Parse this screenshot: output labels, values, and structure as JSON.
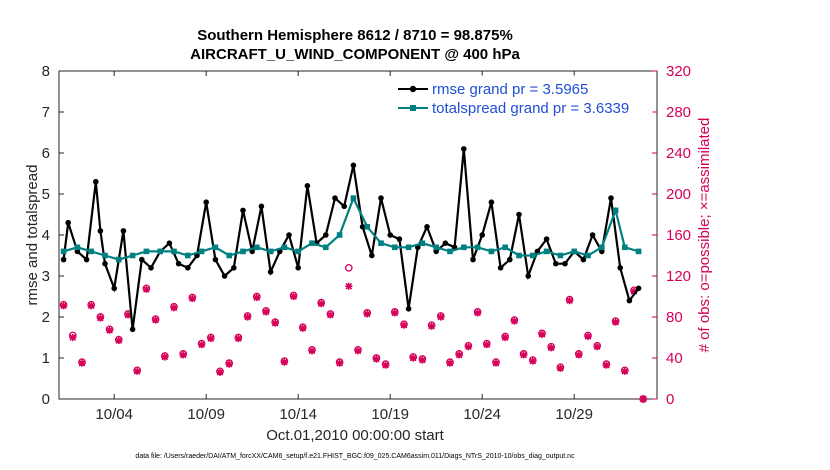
{
  "chart_data": {
    "type": "line",
    "title_line1": "Southern Hemisphere 8612 / 8710 = 98.875%",
    "title_line2": "AIRCRAFT_U_WIND_COMPONENT @ 400 hPa",
    "ylabel": "rmse and totalspread",
    "ylabel_right": "# of obs: o=possible; ×=assimilated",
    "xlabel": "Oct.01,2010 00:00:00 start",
    "footer": "data file: /Users/raeder/DAI/ATM_forcXX/CAM6_setup/f.e21.FHIST_BGC.f09_025.CAM6assim.011/Diags_NTrS_2010-10/obs_diag_output.nc",
    "xlim": [
      1,
      33.5
    ],
    "ylim": [
      0,
      8
    ],
    "ylim_right": [
      0,
      320
    ],
    "x_ticks": [
      4,
      9,
      14,
      19,
      24,
      29
    ],
    "x_tick_labels": [
      "10/04",
      "10/09",
      "10/14",
      "10/19",
      "10/24",
      "10/29"
    ],
    "y_ticks": [
      0,
      1,
      2,
      3,
      4,
      5,
      6,
      7,
      8
    ],
    "y_ticks_right": [
      0,
      40,
      80,
      120,
      160,
      200,
      240,
      280,
      320
    ],
    "legend_position": "top-right",
    "series": [
      {
        "name": "rmse grand pr = 3.5965",
        "color": "#000000",
        "x": [
          1.25,
          1.5,
          2.0,
          2.5,
          3.0,
          3.25,
          3.5,
          4.0,
          4.5,
          5.0,
          5.5,
          6.0,
          6.5,
          7.0,
          7.5,
          8.0,
          8.5,
          9.0,
          9.5,
          10.0,
          10.5,
          11.0,
          11.5,
          12.0,
          12.5,
          13.0,
          13.5,
          14.0,
          14.5,
          15.0,
          15.5,
          16.0,
          16.5,
          17.0,
          17.5,
          18.0,
          18.5,
          19.0,
          19.5,
          20.0,
          20.5,
          21.0,
          21.5,
          22.0,
          22.5,
          23.0,
          23.5,
          24.0,
          24.5,
          25.0,
          25.5,
          26.0,
          26.5,
          27.0,
          27.5,
          28.0,
          28.5,
          29.0,
          29.5,
          30.0,
          30.5,
          31.0,
          31.5,
          32.0,
          32.5
        ],
        "values": [
          3.4,
          4.3,
          3.6,
          3.4,
          5.3,
          4.1,
          3.3,
          2.7,
          4.1,
          1.7,
          3.4,
          3.2,
          3.6,
          3.8,
          3.3,
          3.2,
          3.5,
          4.8,
          3.4,
          3.0,
          3.2,
          4.6,
          3.6,
          4.7,
          3.1,
          3.6,
          4.0,
          3.2,
          5.2,
          3.8,
          4.0,
          4.9,
          4.7,
          5.7,
          4.2,
          3.5,
          4.9,
          4.0,
          3.9,
          2.2,
          3.7,
          4.2,
          3.6,
          3.8,
          3.7,
          6.1,
          3.4,
          4.0,
          4.8,
          3.2,
          3.4,
          4.5,
          3.0,
          3.6,
          3.9,
          3.3,
          3.3,
          3.6,
          3.4,
          4.0,
          3.6,
          4.9,
          3.2,
          2.4,
          2.7
        ]
      },
      {
        "name": "totalspread grand pr = 3.6339",
        "color": "#008080",
        "x": [
          1.25,
          2.0,
          2.75,
          3.5,
          4.25,
          5.0,
          5.75,
          6.5,
          7.25,
          8.0,
          8.75,
          9.5,
          10.25,
          11.0,
          11.75,
          12.5,
          13.25,
          14.0,
          14.75,
          15.5,
          16.25,
          17.0,
          17.75,
          18.5,
          19.25,
          20.0,
          20.75,
          21.5,
          22.25,
          23.0,
          23.75,
          24.5,
          25.25,
          26.0,
          26.75,
          27.5,
          28.25,
          29.0,
          29.75,
          30.5,
          31.25,
          31.75,
          32.5
        ],
        "values": [
          3.6,
          3.7,
          3.6,
          3.5,
          3.4,
          3.5,
          3.6,
          3.6,
          3.6,
          3.5,
          3.6,
          3.7,
          3.5,
          3.6,
          3.7,
          3.6,
          3.7,
          3.6,
          3.8,
          3.7,
          4.0,
          4.9,
          4.2,
          3.8,
          3.7,
          3.7,
          3.8,
          3.7,
          3.6,
          3.7,
          3.7,
          3.6,
          3.7,
          3.5,
          3.5,
          3.6,
          3.5,
          3.6,
          3.5,
          3.7,
          4.6,
          3.7,
          3.6
        ]
      }
    ],
    "obs_series": [
      {
        "name": "possible",
        "color": "#d6005a",
        "x": [
          1.25,
          1.75,
          2.25,
          2.75,
          3.25,
          3.75,
          4.25,
          4.75,
          5.25,
          5.75,
          6.25,
          6.75,
          7.25,
          7.75,
          8.25,
          8.75,
          9.25,
          9.75,
          10.25,
          10.75,
          11.25,
          11.75,
          12.25,
          12.75,
          13.25,
          13.75,
          14.25,
          14.75,
          15.25,
          15.75,
          16.25,
          16.75,
          17.25,
          17.75,
          18.25,
          18.75,
          19.25,
          19.75,
          20.25,
          20.75,
          21.25,
          21.75,
          22.25,
          22.75,
          23.25,
          23.75,
          24.25,
          24.75,
          25.25,
          25.75,
          26.25,
          26.75,
          27.25,
          27.75,
          28.25,
          28.75,
          29.25,
          29.75,
          30.25,
          30.75,
          31.25,
          31.75,
          32.25,
          32.75
        ],
        "values": [
          92,
          62,
          36,
          92,
          80,
          68,
          58,
          83,
          28,
          108,
          78,
          42,
          90,
          44,
          99,
          54,
          60,
          27,
          35,
          60,
          81,
          100,
          86,
          75,
          37,
          101,
          70,
          48,
          94,
          83,
          36,
          128,
          48,
          84,
          40,
          34,
          85,
          73,
          41,
          39,
          72,
          81,
          36,
          44,
          52,
          85,
          54,
          36,
          61,
          77,
          44,
          38,
          64,
          51,
          31,
          97,
          44,
          62,
          52,
          34,
          76,
          28,
          106,
          0
        ]
      },
      {
        "name": "assimilated",
        "color": "#d6005a",
        "x": [
          1.25,
          1.75,
          2.25,
          2.75,
          3.25,
          3.75,
          4.25,
          4.75,
          5.25,
          5.75,
          6.25,
          6.75,
          7.25,
          7.75,
          8.25,
          8.75,
          9.25,
          9.75,
          10.25,
          10.75,
          11.25,
          11.75,
          12.25,
          12.75,
          13.25,
          13.75,
          14.25,
          14.75,
          15.25,
          15.75,
          16.25,
          16.75,
          17.25,
          17.75,
          18.25,
          18.75,
          19.25,
          19.75,
          20.25,
          20.75,
          21.25,
          21.75,
          22.25,
          22.75,
          23.25,
          23.75,
          24.25,
          24.75,
          25.25,
          25.75,
          26.25,
          26.75,
          27.25,
          27.75,
          28.25,
          28.75,
          29.25,
          29.75,
          30.25,
          30.75,
          31.25,
          31.75,
          32.25,
          32.75
        ],
        "values": [
          91,
          60,
          35,
          91,
          79,
          67,
          57,
          82,
          27,
          107,
          77,
          41,
          89,
          43,
          98,
          53,
          59,
          26,
          34,
          59,
          80,
          99,
          85,
          74,
          36,
          100,
          69,
          47,
          93,
          82,
          35,
          110,
          47,
          83,
          39,
          33,
          84,
          72,
          40,
          38,
          71,
          80,
          35,
          43,
          51,
          84,
          53,
          35,
          60,
          76,
          43,
          37,
          63,
          50,
          30,
          96,
          43,
          61,
          51,
          33,
          75,
          27,
          105,
          0
        ]
      }
    ]
  }
}
